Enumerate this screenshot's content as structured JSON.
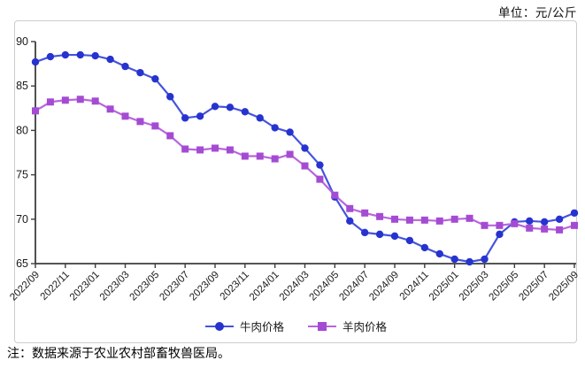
{
  "header": {
    "unit_label": "单位：元/公斤"
  },
  "footer": {
    "note": "注：数据来源于农业农村部畜牧兽医局。"
  },
  "chart_data": {
    "type": "line",
    "title": "",
    "xlabel": "",
    "ylabel": "",
    "x": [
      "2022/09",
      "2022/10",
      "2022/11",
      "2022/12",
      "2023/01",
      "2023/02",
      "2023/03",
      "2023/04",
      "2023/05",
      "2023/06",
      "2023/07",
      "2023/08",
      "2023/09",
      "2023/10",
      "2023/11",
      "2023/12",
      "2024/01",
      "2024/02",
      "2024/03",
      "2024/04",
      "2024/05",
      "2024/06",
      "2024/07",
      "2024/08",
      "2024/09",
      "2024/10",
      "2024/11",
      "2024/12",
      "2025/01",
      "2025/02",
      "2025/03",
      "2025/04",
      "2025/05",
      "2025/06",
      "2025/07",
      "2025/08",
      "2025/09"
    ],
    "x_tick_every": 2,
    "series": [
      {
        "name": "牛肉价格",
        "marker": "circle",
        "color": "#2733cf",
        "line_color": "#4553de",
        "values": [
          87.7,
          88.3,
          88.5,
          88.5,
          88.4,
          88.0,
          87.2,
          86.5,
          85.8,
          83.8,
          81.4,
          81.6,
          82.7,
          82.6,
          82.1,
          81.4,
          80.3,
          79.8,
          78.0,
          76.1,
          72.5,
          69.8,
          68.5,
          68.3,
          68.1,
          67.6,
          66.8,
          66.1,
          65.5,
          65.2,
          65.5,
          68.3,
          69.7,
          69.8,
          69.7,
          70.0,
          70.7
        ]
      },
      {
        "name": "羊肉价格",
        "marker": "square",
        "color": "#a44bd3",
        "line_color": "#b964df",
        "values": [
          82.2,
          83.2,
          83.4,
          83.5,
          83.3,
          82.4,
          81.6,
          81.0,
          80.5,
          79.4,
          77.9,
          77.8,
          78.0,
          77.8,
          77.1,
          77.1,
          76.8,
          77.3,
          76.0,
          74.5,
          72.7,
          71.2,
          70.7,
          70.3,
          70.0,
          69.9,
          69.9,
          69.8,
          70.0,
          70.1,
          69.3,
          69.3,
          69.5,
          69.0,
          68.9,
          68.8,
          69.3
        ]
      }
    ],
    "ylim": [
      65,
      90
    ],
    "y_ticks": [
      65,
      70,
      75,
      80,
      85,
      90
    ],
    "grid": false,
    "legend_position": "bottom",
    "axis_color": "#3d3d3d",
    "text_color": "#1a1a1a"
  }
}
